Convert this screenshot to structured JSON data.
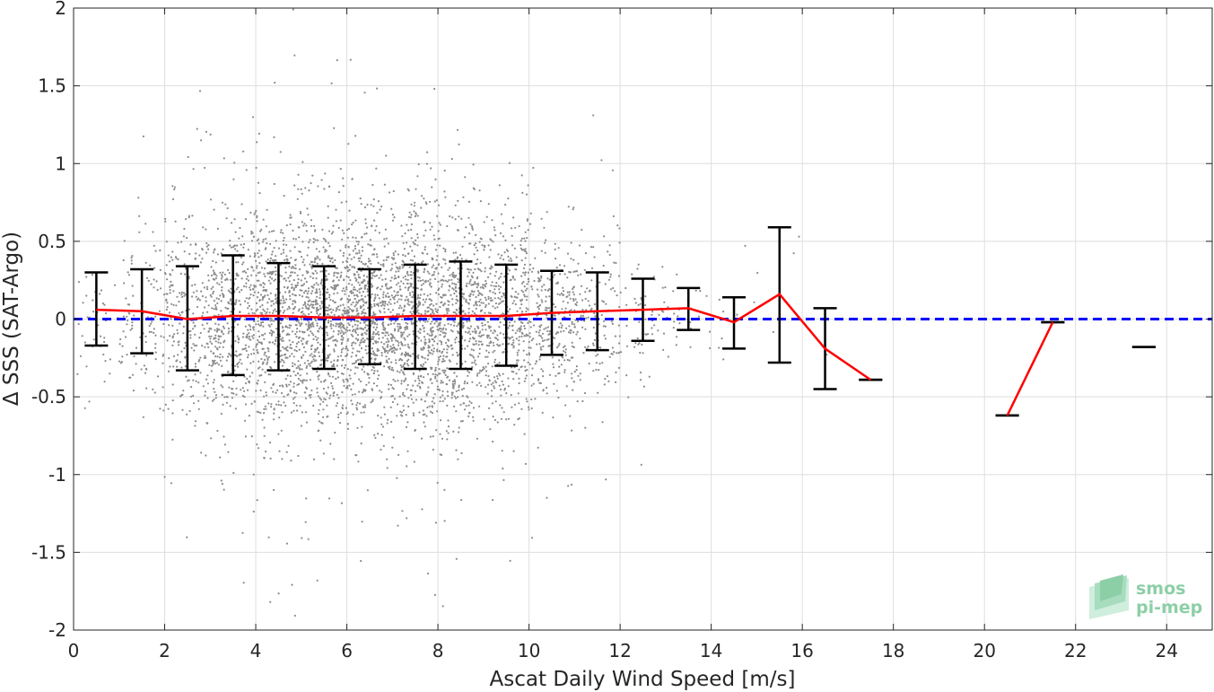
{
  "chart_data": {
    "type": "scatter",
    "xlabel": "Ascat Daily Wind Speed [m/s]",
    "ylabel": "Δ SSS (SAT-Argo)",
    "xlim": [
      0,
      25
    ],
    "ylim": [
      -2,
      2
    ],
    "xticks": [
      0,
      2,
      4,
      6,
      8,
      10,
      12,
      14,
      16,
      18,
      20,
      22,
      24
    ],
    "yticks": [
      -2,
      -1.5,
      -1,
      -0.5,
      0,
      0.5,
      1,
      1.5,
      2
    ],
    "xtick_labels": [
      "0",
      "2",
      "4",
      "6",
      "8",
      "10",
      "12",
      "14",
      "16",
      "18",
      "20",
      "22",
      "24"
    ],
    "ytick_labels": [
      "-2",
      "-1.5",
      "-1",
      "-0.5",
      "0",
      "0.5",
      "1",
      "1.5",
      "2"
    ],
    "grid": true,
    "reference_line": {
      "y": 0,
      "style": "dashed",
      "color": "#0000ff"
    },
    "scatter_color": "#8c8c8c",
    "mean_line_color": "#ff0000",
    "errorbar_color": "#000000",
    "binned_stats": [
      {
        "x": 0.5,
        "mean": 0.06,
        "lower": -0.17,
        "upper": 0.3
      },
      {
        "x": 1.5,
        "mean": 0.05,
        "lower": -0.22,
        "upper": 0.32
      },
      {
        "x": 2.5,
        "mean": 0.0,
        "lower": -0.33,
        "upper": 0.34
      },
      {
        "x": 3.5,
        "mean": 0.02,
        "lower": -0.36,
        "upper": 0.41
      },
      {
        "x": 4.5,
        "mean": 0.02,
        "lower": -0.33,
        "upper": 0.36
      },
      {
        "x": 5.5,
        "mean": 0.01,
        "lower": -0.32,
        "upper": 0.34
      },
      {
        "x": 6.5,
        "mean": 0.01,
        "lower": -0.29,
        "upper": 0.32
      },
      {
        "x": 7.5,
        "mean": 0.02,
        "lower": -0.32,
        "upper": 0.35
      },
      {
        "x": 8.5,
        "mean": 0.02,
        "lower": -0.32,
        "upper": 0.37
      },
      {
        "x": 9.5,
        "mean": 0.02,
        "lower": -0.3,
        "upper": 0.35
      },
      {
        "x": 10.5,
        "mean": 0.04,
        "lower": -0.23,
        "upper": 0.31
      },
      {
        "x": 11.5,
        "mean": 0.05,
        "lower": -0.2,
        "upper": 0.3
      },
      {
        "x": 12.5,
        "mean": 0.06,
        "lower": -0.14,
        "upper": 0.26
      },
      {
        "x": 13.5,
        "mean": 0.07,
        "lower": -0.07,
        "upper": 0.2
      },
      {
        "x": 14.5,
        "mean": -0.02,
        "lower": -0.19,
        "upper": 0.14
      },
      {
        "x": 15.5,
        "mean": 0.16,
        "lower": -0.28,
        "upper": 0.59
      },
      {
        "x": 16.5,
        "mean": -0.19,
        "lower": -0.45,
        "upper": 0.07
      },
      {
        "x": 17.5,
        "mean": -0.39,
        "lower": -0.39,
        "upper": -0.39
      },
      {
        "x": 20.5,
        "mean": -0.62,
        "lower": -0.62,
        "upper": -0.62
      },
      {
        "x": 21.5,
        "mean": -0.02,
        "lower": -0.02,
        "upper": -0.02
      },
      {
        "x": 23.5,
        "mean": -0.18,
        "lower": -0.18,
        "upper": -0.18
      }
    ],
    "mean_line_segments": [
      [
        0.5,
        1.5,
        2.5,
        3.5,
        4.5,
        5.5,
        6.5,
        7.5,
        8.5,
        9.5,
        10.5,
        11.5,
        12.5,
        13.5,
        14.5,
        15.5,
        16.5,
        17.5
      ],
      [
        20.5,
        21.5
      ]
    ],
    "scatter_points_note_hidden": false
  },
  "logo": {
    "line1": "smos",
    "line2": "pi-mep"
  }
}
